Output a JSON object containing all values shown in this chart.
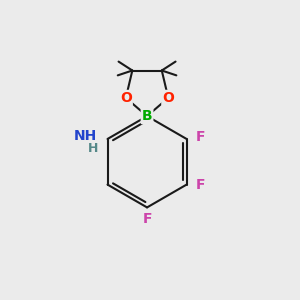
{
  "bg_color": "#ebebeb",
  "bond_color": "#1a1a1a",
  "bond_width": 1.5,
  "atom_labels": {
    "B": {
      "color": "#00aa00",
      "fontsize": 10,
      "fontweight": "bold"
    },
    "O1": {
      "text": "O",
      "color": "#ff2200",
      "fontsize": 10,
      "fontweight": "bold"
    },
    "O2": {
      "text": "O",
      "color": "#ff2200",
      "fontsize": 10,
      "fontweight": "bold"
    },
    "NH": {
      "text": "NH",
      "color": "#2244cc",
      "fontsize": 10,
      "fontweight": "bold"
    },
    "H": {
      "text": "H",
      "color": "#558888",
      "fontsize": 9,
      "fontweight": "bold"
    },
    "F1": {
      "text": "F",
      "color": "#cc44aa",
      "fontsize": 10,
      "fontweight": "bold"
    },
    "F2": {
      "text": "F",
      "color": "#cc44aa",
      "fontsize": 10,
      "fontweight": "bold"
    },
    "F3": {
      "text": "F",
      "color": "#cc44aa",
      "fontsize": 10,
      "fontweight": "bold"
    }
  }
}
